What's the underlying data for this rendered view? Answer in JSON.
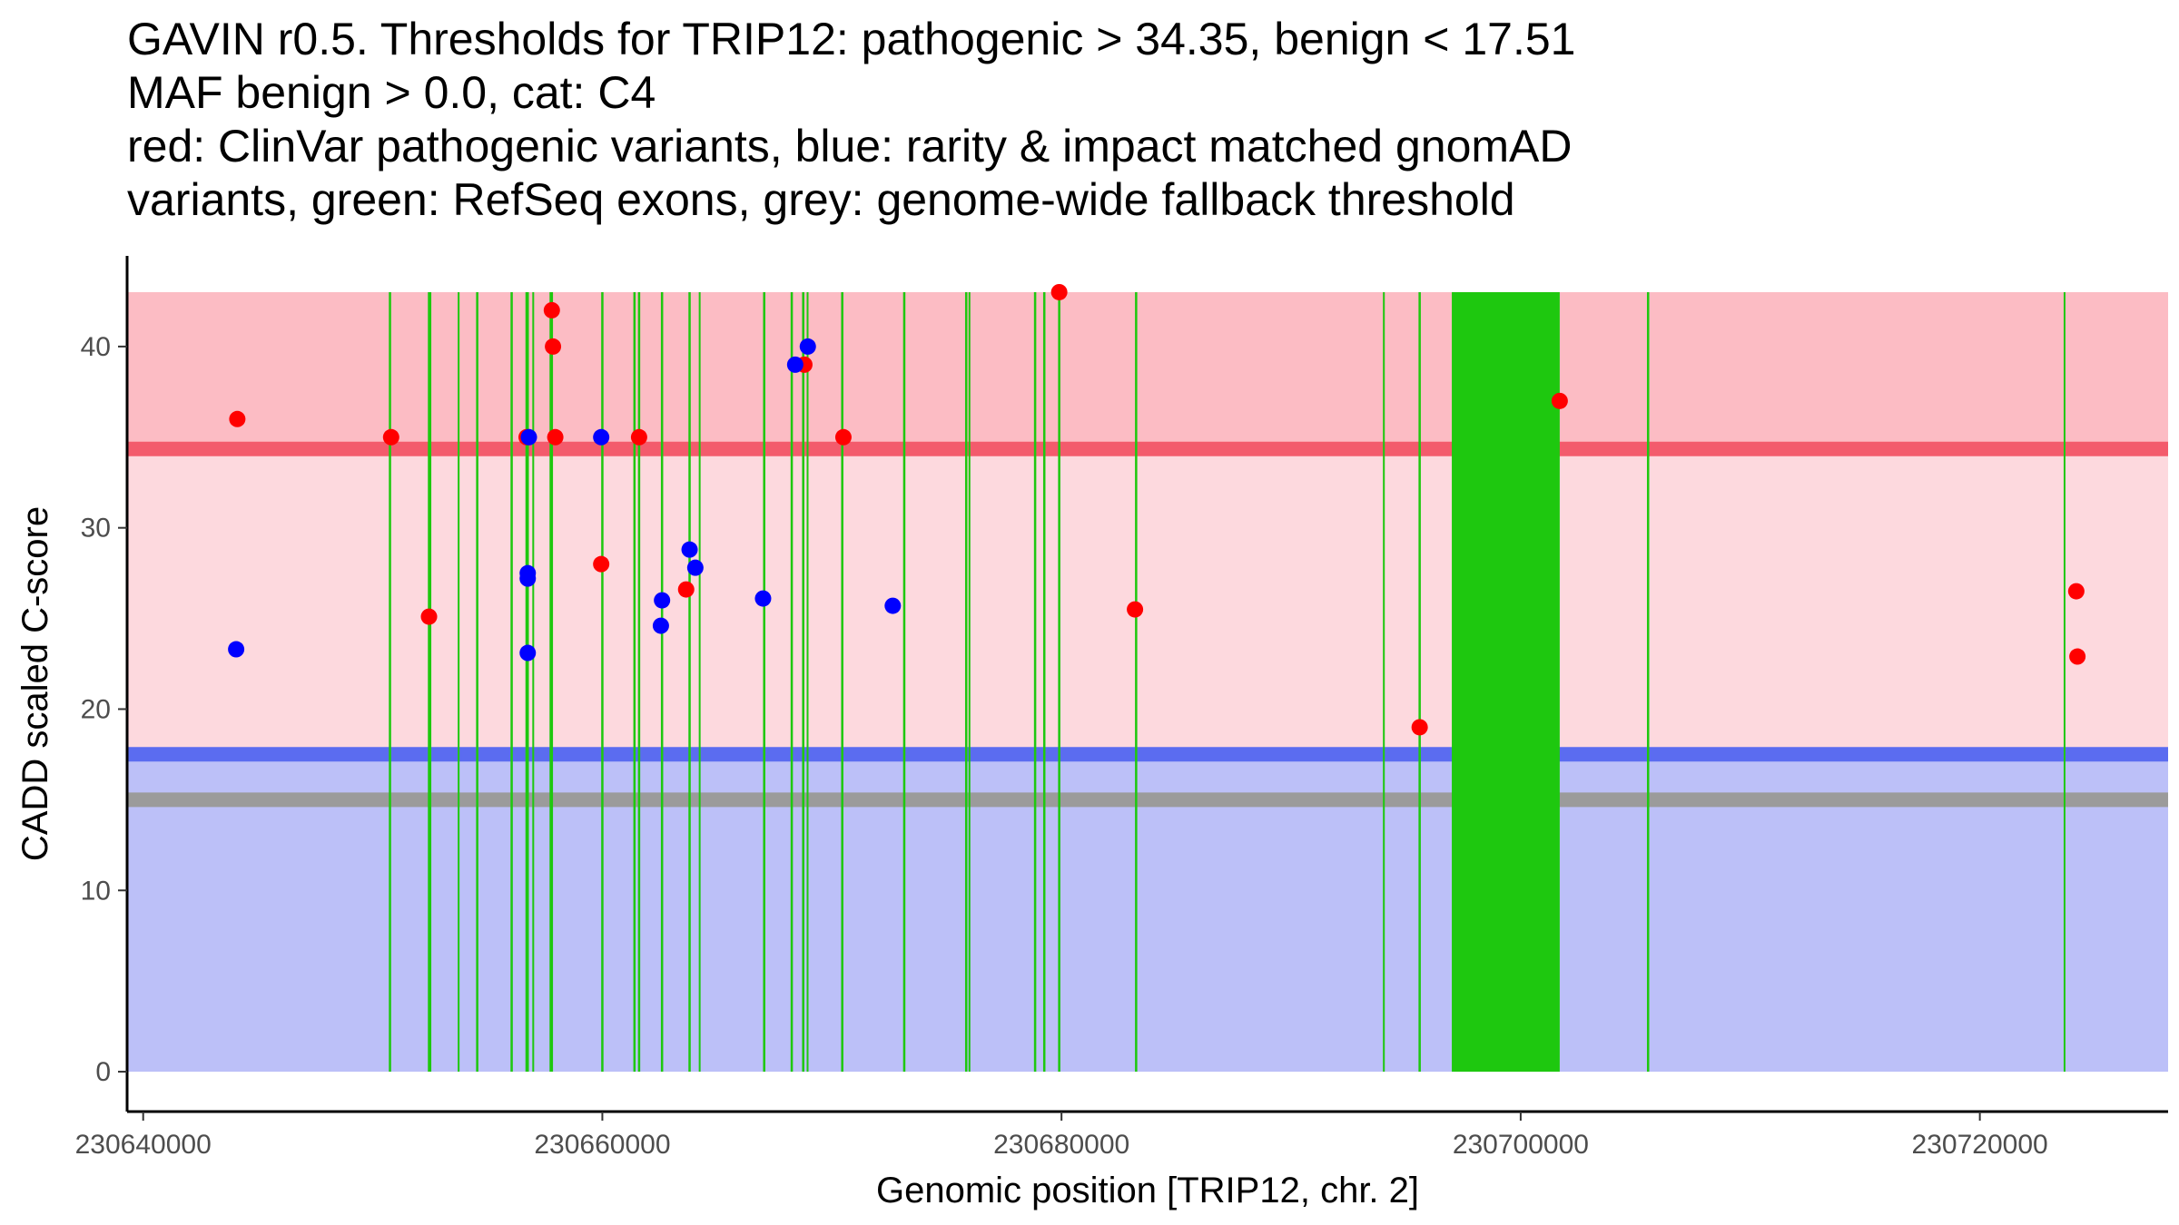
{
  "chart_data": {
    "type": "scatter",
    "title_lines": [
      "GAVIN r0.5. Thresholds for TRIP12: pathogenic > 34.35, benign < 17.51",
      "MAF benign > 0.0, cat: C4",
      "red: ClinVar pathogenic variants, blue: rarity & impact matched gnomAD",
      "variants, green: RefSeq exons, grey: genome-wide fallback threshold"
    ],
    "xlabel": "Genomic position [TRIP12, chr. 2]",
    "ylabel": "CADD scaled C-score",
    "xlim": [
      230639300,
      230728200
    ],
    "ylim": [
      -2.2,
      45
    ],
    "x_ticks": [
      230640000,
      230660000,
      230680000,
      230700000,
      230720000
    ],
    "x_tick_labels": [
      "230640000",
      "230660000",
      "230680000",
      "230700000",
      "230720000"
    ],
    "y_ticks": [
      0,
      10,
      20,
      30,
      40
    ],
    "y_tick_labels": [
      "0",
      "10",
      "20",
      "30",
      "40"
    ],
    "region_x": [
      230639300,
      230728200
    ],
    "bands": [
      {
        "name": "pathogenic-zone",
        "y0": 34.35,
        "y1": 43,
        "color": "#fcbcc4"
      },
      {
        "name": "uncertain-zone",
        "y0": 17.51,
        "y1": 34.35,
        "color": "#fdd9de"
      },
      {
        "name": "benign-zone",
        "y0": 0,
        "y1": 17.51,
        "color": "#bcc0f8"
      }
    ],
    "threshold_lines": [
      {
        "name": "pathogenic-threshold",
        "y": 34.35,
        "color": "#f35b6c"
      },
      {
        "name": "benign-threshold",
        "y": 17.51,
        "color": "#5b6cf0"
      },
      {
        "name": "fallback-threshold",
        "y": 15.0,
        "color": "#9b9b9b"
      }
    ],
    "exons": [
      {
        "start": 230650700,
        "end": 230650800
      },
      {
        "start": 230652400,
        "end": 230652550
      },
      {
        "start": 230653700,
        "end": 230653780
      },
      {
        "start": 230654500,
        "end": 230654600
      },
      {
        "start": 230656000,
        "end": 230656100
      },
      {
        "start": 230656650,
        "end": 230656800
      },
      {
        "start": 230656950,
        "end": 230657000
      },
      {
        "start": 230657700,
        "end": 230657850
      },
      {
        "start": 230659950,
        "end": 230660050
      },
      {
        "start": 230661350,
        "end": 230661450
      },
      {
        "start": 230661550,
        "end": 230661650
      },
      {
        "start": 230662550,
        "end": 230662650
      },
      {
        "start": 230663750,
        "end": 230663850
      },
      {
        "start": 230664200,
        "end": 230664250
      },
      {
        "start": 230667000,
        "end": 230667100
      },
      {
        "start": 230668200,
        "end": 230668300
      },
      {
        "start": 230668700,
        "end": 230668800
      },
      {
        "start": 230668900,
        "end": 230668950
      },
      {
        "start": 230670400,
        "end": 230670500
      },
      {
        "start": 230673100,
        "end": 230673200
      },
      {
        "start": 230675800,
        "end": 230675900
      },
      {
        "start": 230675950,
        "end": 230676000
      },
      {
        "start": 230678800,
        "end": 230678900
      },
      {
        "start": 230679200,
        "end": 230679300
      },
      {
        "start": 230679850,
        "end": 230679950
      },
      {
        "start": 230683200,
        "end": 230683300
      },
      {
        "start": 230694000,
        "end": 230694080
      },
      {
        "start": 230695550,
        "end": 230695650
      },
      {
        "start": 230697000,
        "end": 230701700
      },
      {
        "start": 230705500,
        "end": 230705600
      },
      {
        "start": 230723650,
        "end": 230723700
      }
    ],
    "series": [
      {
        "name": "ClinVar pathogenic",
        "color": "#ff0000",
        "points": [
          {
            "x": 230644100,
            "y": 36.0
          },
          {
            "x": 230650800,
            "y": 35.0
          },
          {
            "x": 230652450,
            "y": 25.1
          },
          {
            "x": 230656700,
            "y": 35.0
          },
          {
            "x": 230657800,
            "y": 42.0
          },
          {
            "x": 230657850,
            "y": 40.0
          },
          {
            "x": 230657950,
            "y": 35.0
          },
          {
            "x": 230659950,
            "y": 28.0
          },
          {
            "x": 230661600,
            "y": 35.0
          },
          {
            "x": 230663650,
            "y": 26.6
          },
          {
            "x": 230668800,
            "y": 39.0
          },
          {
            "x": 230670500,
            "y": 35.0
          },
          {
            "x": 230679900,
            "y": 43.0
          },
          {
            "x": 230683200,
            "y": 25.5
          },
          {
            "x": 230695600,
            "y": 19.0
          },
          {
            "x": 230701700,
            "y": 37.0
          },
          {
            "x": 230724200,
            "y": 26.5
          },
          {
            "x": 230724250,
            "y": 22.9
          }
        ]
      },
      {
        "name": "gnomAD matched",
        "color": "#0000ff",
        "points": [
          {
            "x": 230644050,
            "y": 23.3
          },
          {
            "x": 230656750,
            "y": 27.5
          },
          {
            "x": 230656750,
            "y": 27.2
          },
          {
            "x": 230656750,
            "y": 23.1
          },
          {
            "x": 230656800,
            "y": 35.0
          },
          {
            "x": 230659950,
            "y": 35.0
          },
          {
            "x": 230662600,
            "y": 26.0
          },
          {
            "x": 230662550,
            "y": 24.6
          },
          {
            "x": 230663800,
            "y": 28.8
          },
          {
            "x": 230664050,
            "y": 27.8
          },
          {
            "x": 230667000,
            "y": 26.1
          },
          {
            "x": 230668400,
            "y": 39.0
          },
          {
            "x": 230668950,
            "y": 40.0
          },
          {
            "x": 230672650,
            "y": 25.7
          }
        ]
      }
    ]
  }
}
